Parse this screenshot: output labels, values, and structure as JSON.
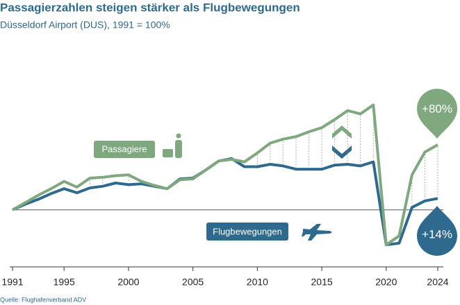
{
  "chart_data": {
    "type": "line",
    "title": "Passagierzahlen steigen stärker als Flugbewegungen",
    "subtitle": "Düsseldorf Airport (DUS), 1991 = 100%",
    "source": "Quelle: Flughafenverband ADV",
    "x": [
      1991,
      1992,
      1993,
      1994,
      1995,
      1996,
      1997,
      1998,
      1999,
      2000,
      2001,
      2002,
      2003,
      2004,
      2005,
      2006,
      2007,
      2008,
      2009,
      2010,
      2011,
      2012,
      2013,
      2014,
      2015,
      2016,
      2017,
      2018,
      2019,
      2020,
      2021,
      2022,
      2023,
      2024
    ],
    "series": [
      {
        "name": "Passagiere",
        "color": "#7fa87f",
        "values": [
          100,
          109,
          118,
          126,
          135,
          128,
          139,
          140,
          142,
          143,
          135,
          130,
          126,
          137,
          138,
          149,
          160,
          162,
          159,
          170,
          182,
          187,
          190,
          196,
          201,
          211,
          222,
          218,
          229,
          57,
          68,
          143,
          171,
          180
        ]
      },
      {
        "name": "Flugbewegungen",
        "color": "#2e6a8e",
        "values": [
          100,
          107,
          113,
          120,
          126,
          121,
          127,
          129,
          133,
          131,
          132,
          129,
          126,
          138,
          139,
          149,
          160,
          163,
          153,
          153,
          156,
          154,
          150,
          150,
          150,
          155,
          156,
          154,
          159,
          57,
          59,
          103,
          111,
          114
        ]
      }
    ],
    "annotations": [
      "+80%",
      "+14%"
    ],
    "reference_line": 100,
    "xlim": [
      1991,
      2024
    ],
    "xticks": [
      1991,
      1995,
      2000,
      2005,
      2010,
      2015,
      2020,
      2024
    ],
    "ylim": [
      35,
      260
    ]
  }
}
